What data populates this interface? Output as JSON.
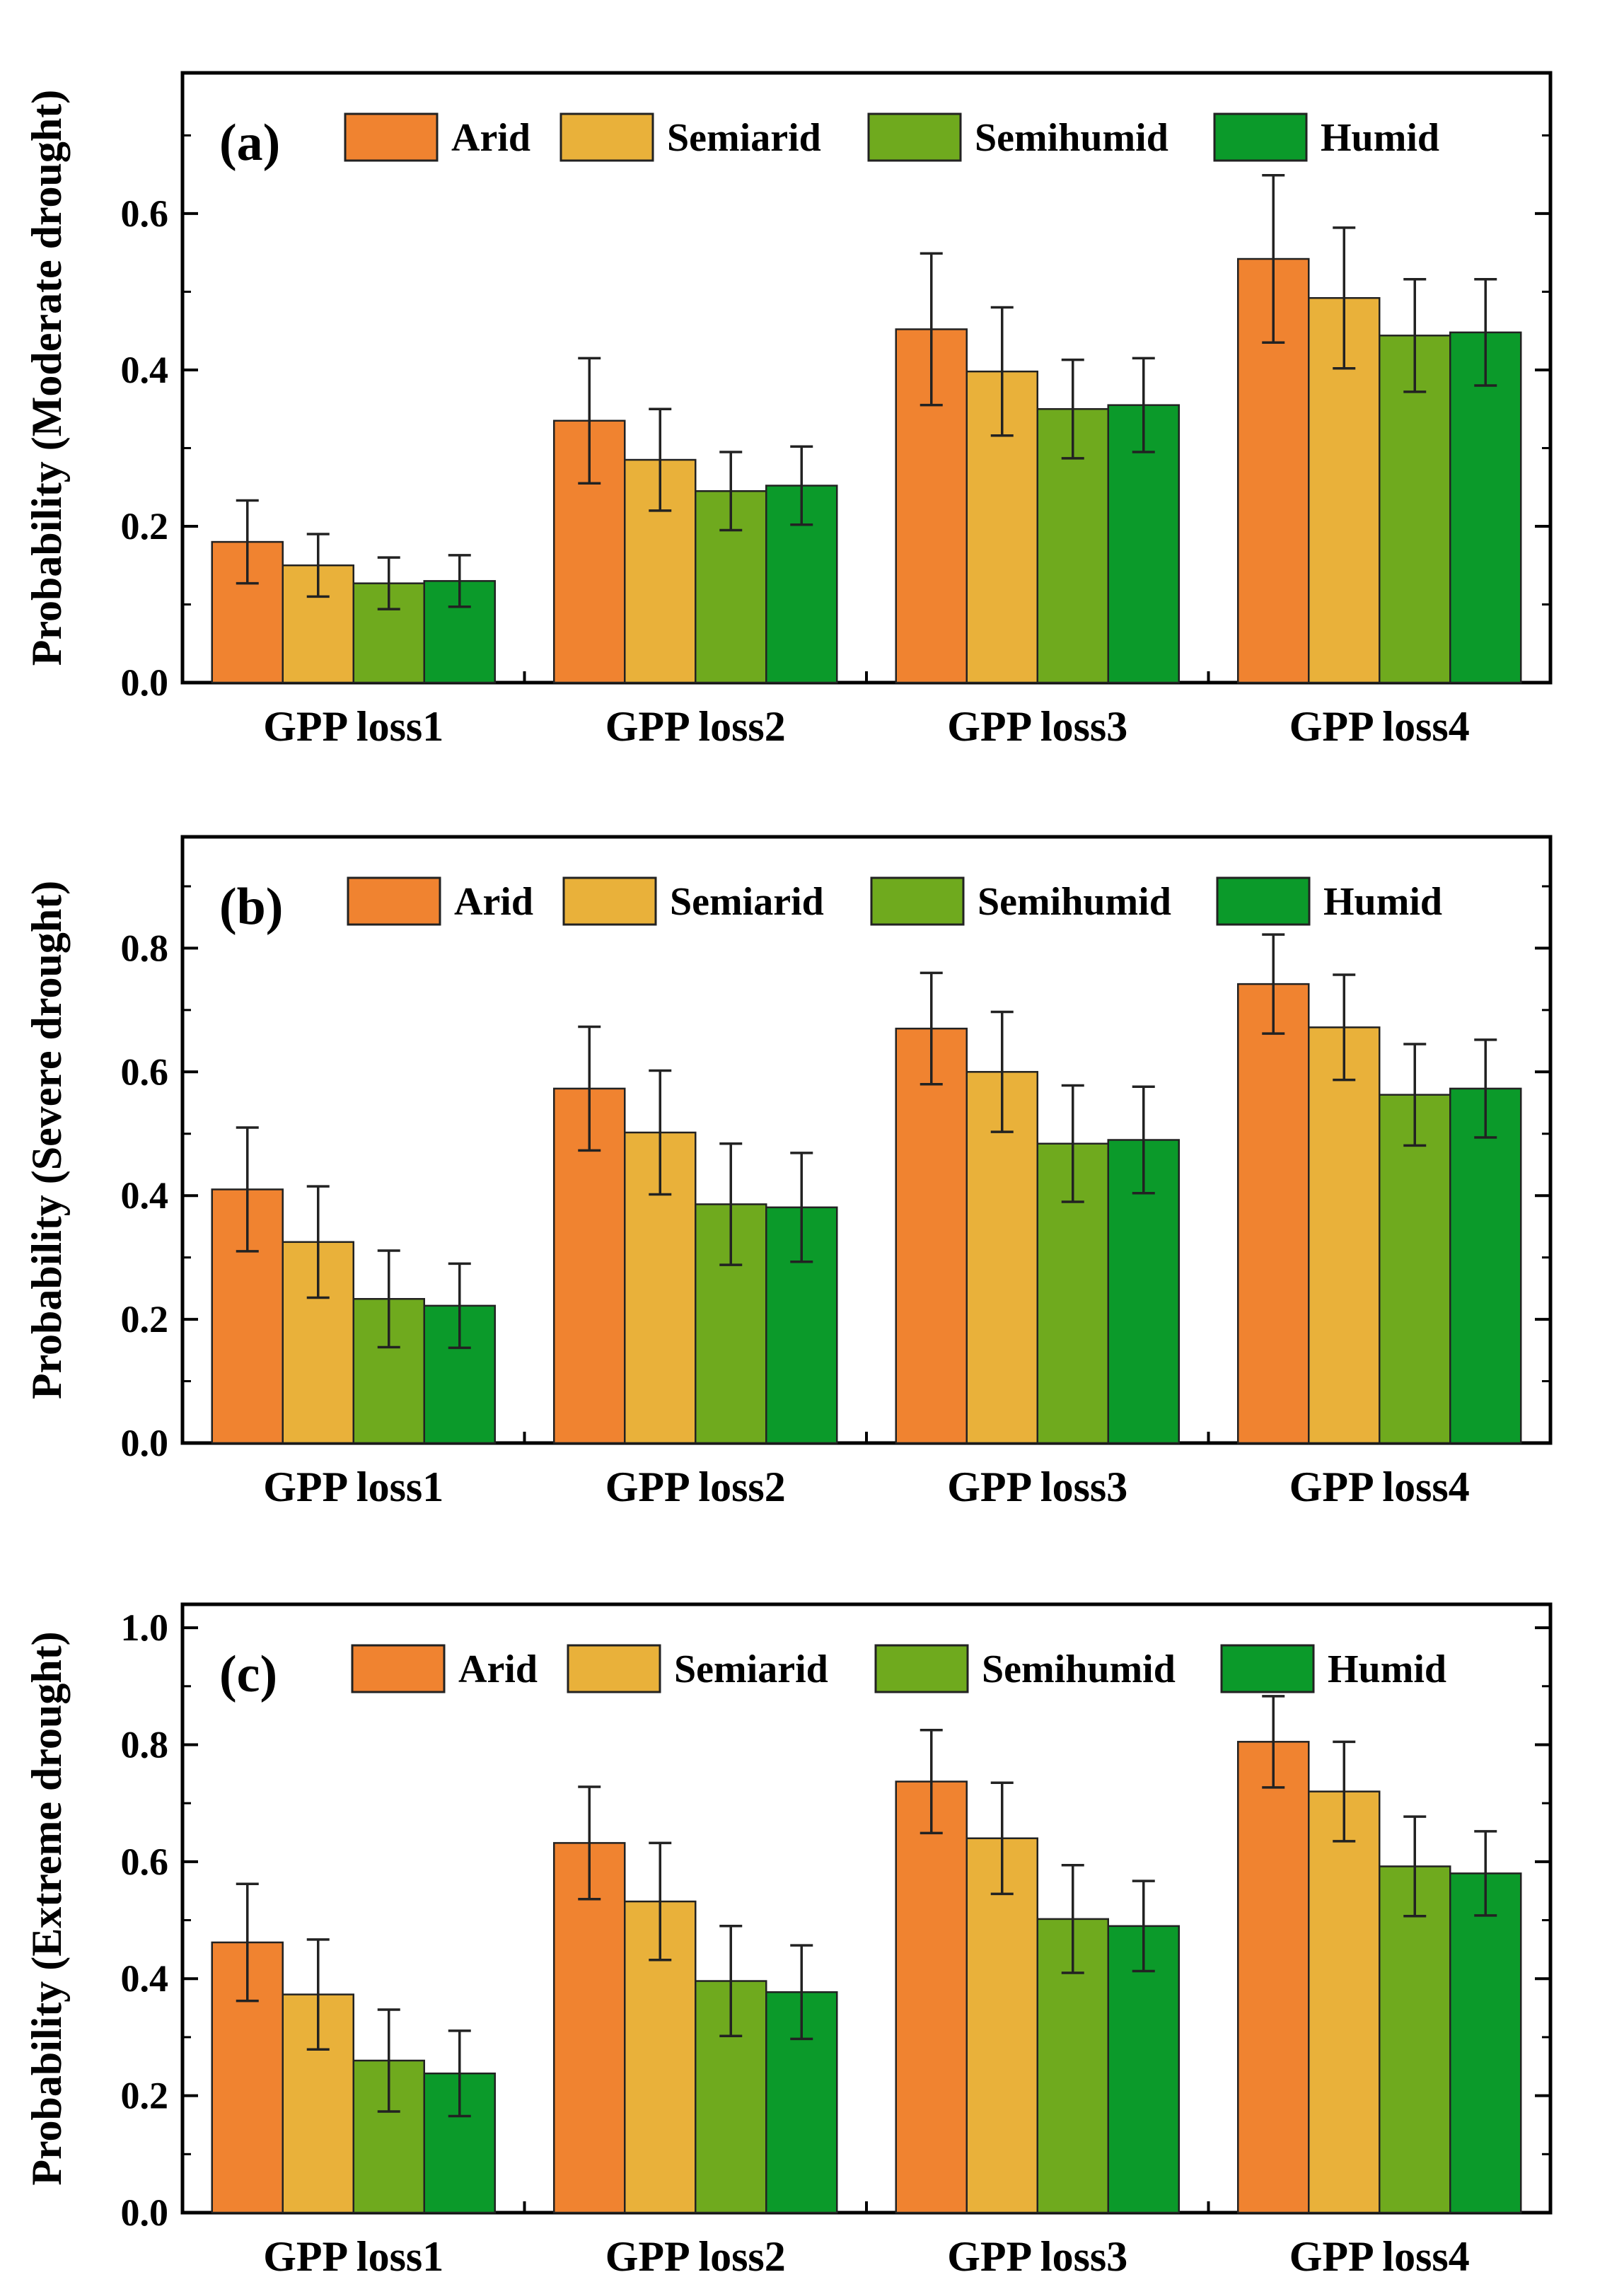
{
  "chart_data": [
    {
      "type": "bar",
      "panel_label": "(a)",
      "ylabel": "Probability (Moderate drought)",
      "xlabel": "",
      "ylim": [
        0,
        0.78
      ],
      "yticks": [
        "0.0",
        "0.2",
        "0.4",
        "0.6"
      ],
      "ytick_values": [
        0,
        0.2,
        0.4,
        0.6
      ],
      "categories": [
        "GPP loss1",
        "GPP loss2",
        "GPP loss3",
        "GPP loss4"
      ],
      "series": [
        {
          "name": "Arid",
          "color": "#F08330",
          "values": [
            0.18,
            0.335,
            0.452,
            0.542
          ],
          "errors": [
            0.053,
            0.08,
            0.097,
            0.107
          ]
        },
        {
          "name": "Semiarid",
          "color": "#E9B13A",
          "values": [
            0.15,
            0.285,
            0.398,
            0.492
          ],
          "errors": [
            0.04,
            0.065,
            0.082,
            0.09
          ]
        },
        {
          "name": "Semihumid",
          "color": "#6FAA1E",
          "values": [
            0.127,
            0.245,
            0.35,
            0.444
          ],
          "errors": [
            0.033,
            0.05,
            0.063,
            0.072
          ]
        },
        {
          "name": "Humid",
          "color": "#0B9A2A",
          "values": [
            0.13,
            0.252,
            0.355,
            0.448
          ],
          "errors": [
            0.033,
            0.05,
            0.06,
            0.068
          ]
        }
      ],
      "legend": "top"
    },
    {
      "type": "bar",
      "panel_label": "(b)",
      "ylabel": "Probability (Severe drought)",
      "xlabel": "",
      "ylim": [
        0,
        0.98
      ],
      "yticks": [
        "0.0",
        "0.2",
        "0.4",
        "0.6",
        "0.8"
      ],
      "ytick_values": [
        0,
        0.2,
        0.4,
        0.6,
        0.8
      ],
      "categories": [
        "GPP loss1",
        "GPP loss2",
        "GPP loss3",
        "GPP loss4"
      ],
      "series": [
        {
          "name": "Arid",
          "color": "#F08330",
          "values": [
            0.41,
            0.573,
            0.67,
            0.742
          ],
          "errors": [
            0.1,
            0.1,
            0.09,
            0.08
          ]
        },
        {
          "name": "Semiarid",
          "color": "#E9B13A",
          "values": [
            0.325,
            0.502,
            0.6,
            0.672
          ],
          "errors": [
            0.09,
            0.1,
            0.097,
            0.085
          ]
        },
        {
          "name": "Semihumid",
          "color": "#6FAA1E",
          "values": [
            0.233,
            0.386,
            0.484,
            0.563
          ],
          "errors": [
            0.078,
            0.098,
            0.094,
            0.082
          ]
        },
        {
          "name": "Humid",
          "color": "#0B9A2A",
          "values": [
            0.222,
            0.381,
            0.49,
            0.573
          ],
          "errors": [
            0.068,
            0.088,
            0.086,
            0.079
          ]
        }
      ],
      "legend": "top"
    },
    {
      "type": "bar",
      "panel_label": "(c)",
      "ylabel": "Probability (Extreme drought)",
      "xlabel": "",
      "ylim": [
        0,
        1.04
      ],
      "yticks": [
        "0.0",
        "0.2",
        "0.4",
        "0.6",
        "0.8",
        "1.0"
      ],
      "ytick_values": [
        0,
        0.2,
        0.4,
        0.6,
        0.8,
        1.0
      ],
      "categories": [
        "GPP loss1",
        "GPP loss2",
        "GPP loss3",
        "GPP loss4"
      ],
      "series": [
        {
          "name": "Arid",
          "color": "#F08330",
          "values": [
            0.462,
            0.632,
            0.737,
            0.805
          ],
          "errors": [
            0.1,
            0.096,
            0.088,
            0.078
          ]
        },
        {
          "name": "Semiarid",
          "color": "#E9B13A",
          "values": [
            0.373,
            0.532,
            0.64,
            0.72
          ],
          "errors": [
            0.094,
            0.1,
            0.095,
            0.085
          ]
        },
        {
          "name": "Semihumid",
          "color": "#6FAA1E",
          "values": [
            0.26,
            0.396,
            0.502,
            0.592
          ],
          "errors": [
            0.087,
            0.094,
            0.092,
            0.085
          ]
        },
        {
          "name": "Humid",
          "color": "#0B9A2A",
          "values": [
            0.238,
            0.377,
            0.49,
            0.58
          ],
          "errors": [
            0.073,
            0.08,
            0.077,
            0.072
          ]
        }
      ],
      "legend": "top"
    }
  ]
}
